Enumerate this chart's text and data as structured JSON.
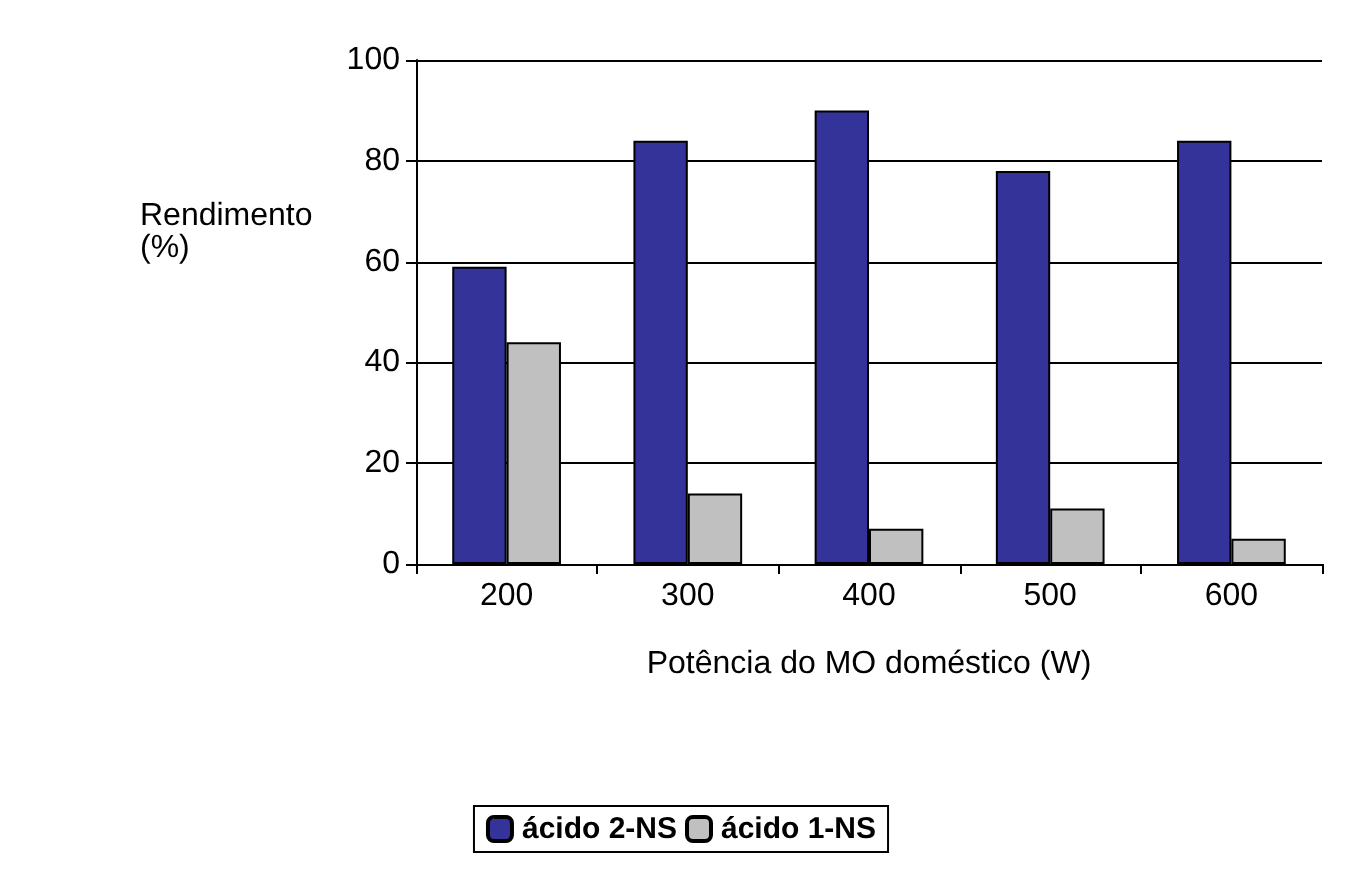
{
  "chart_data": {
    "type": "bar",
    "xlabel": "Potência do MO doméstico (W)",
    "ylabel": "Rendimento\n(%)",
    "categories": [
      "200",
      "300",
      "400",
      "500",
      "600"
    ],
    "series": [
      {
        "name": "ácido 2-NS",
        "color": "#333399",
        "values": [
          59,
          84,
          90,
          78,
          84
        ]
      },
      {
        "name": "ácido 1-NS",
        "color": "#c0c0c0",
        "values": [
          44,
          14,
          7,
          11,
          5
        ]
      }
    ],
    "ylim": [
      0,
      100
    ],
    "yticks": [
      0,
      20,
      40,
      60,
      80,
      100
    ],
    "grid": "y",
    "legend": "bottom"
  }
}
